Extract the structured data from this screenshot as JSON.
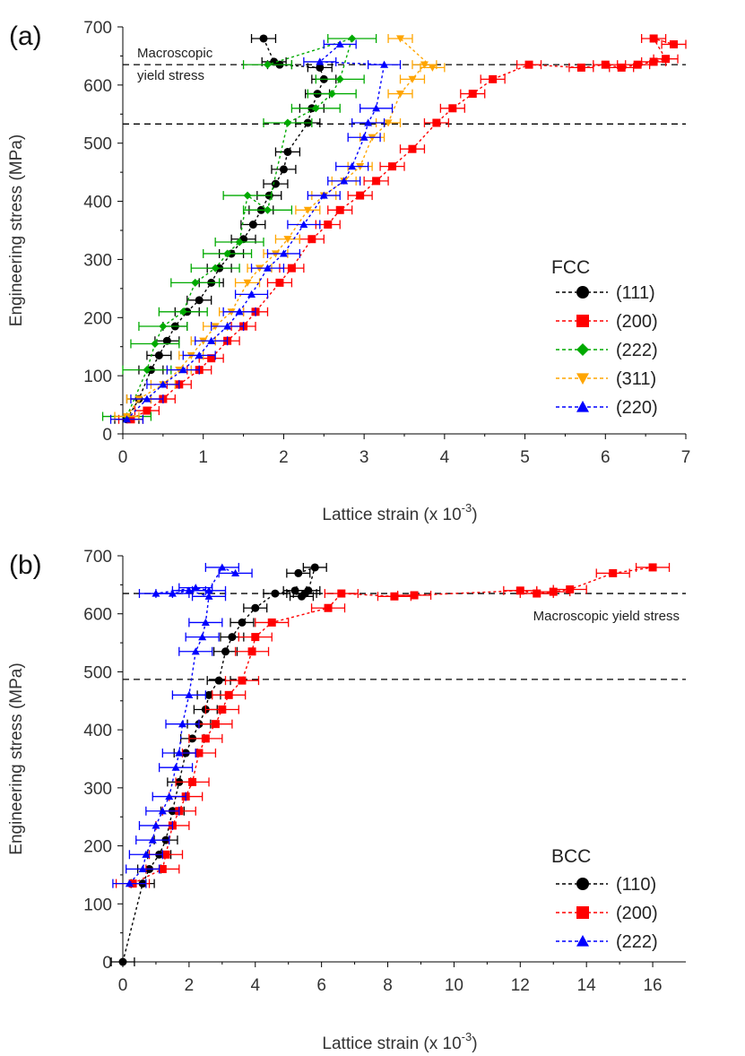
{
  "chart_data": [
    {
      "id": "a",
      "type": "scatter",
      "panel_label": "(a)",
      "xlabel": "Lattice strain (x 10",
      "xlabel_exp": "-3",
      "xlabel_close": ")",
      "ylabel": "Engineering stress (MPa)",
      "xlim": [
        0,
        7
      ],
      "ylim": [
        0,
        700
      ],
      "xticks": [
        0,
        1,
        2,
        3,
        4,
        5,
        6,
        7
      ],
      "yticks": [
        0,
        100,
        200,
        300,
        400,
        500,
        600,
        700
      ],
      "hlines": [
        635,
        533
      ],
      "annotation": [
        "Macroscopic",
        "yield stress"
      ],
      "legend_title": "FCC",
      "series": [
        {
          "name": "(111)",
          "color": "#000000",
          "marker": "circle",
          "x": [
            0.05,
            0.2,
            0.35,
            0.45,
            0.55,
            0.65,
            0.8,
            0.95,
            1.1,
            1.2,
            1.35,
            1.5,
            1.62,
            1.72,
            1.82,
            1.9,
            2.0,
            2.05,
            2.3,
            2.35,
            2.42,
            2.5,
            2.45,
            1.95,
            1.88,
            1.75
          ],
          "y": [
            25,
            60,
            110,
            135,
            160,
            185,
            210,
            230,
            260,
            285,
            310,
            335,
            360,
            385,
            410,
            430,
            455,
            485,
            535,
            560,
            585,
            610,
            630,
            635,
            640,
            680
          ],
          "err": 0.15
        },
        {
          "name": "(200)",
          "color": "#ff0000",
          "marker": "square",
          "x": [
            0.1,
            0.3,
            0.5,
            0.7,
            0.95,
            1.1,
            1.3,
            1.5,
            1.65,
            1.95,
            2.1,
            2.35,
            2.55,
            2.7,
            2.95,
            3.15,
            3.35,
            3.6,
            3.9,
            4.1,
            4.35,
            4.6,
            5.05,
            5.7,
            6.0,
            6.2,
            6.4,
            6.6,
            6.75,
            6.6,
            6.85
          ],
          "y": [
            25,
            40,
            60,
            85,
            110,
            130,
            160,
            185,
            210,
            260,
            285,
            335,
            360,
            385,
            410,
            435,
            460,
            490,
            535,
            560,
            585,
            610,
            635,
            630,
            635,
            630,
            635,
            640,
            645,
            680,
            670
          ],
          "err": 0.15
        },
        {
          "name": "(222)",
          "color": "#00aa00",
          "marker": "diamond",
          "x": [
            0.05,
            0.3,
            0.4,
            0.5,
            0.75,
            0.9,
            1.15,
            1.3,
            1.45,
            1.55,
            1.8,
            2.05,
            2.4,
            2.6,
            2.7,
            2.85,
            1.8
          ],
          "y": [
            30,
            110,
            155,
            185,
            210,
            260,
            285,
            310,
            330,
            410,
            385,
            535,
            560,
            585,
            610,
            680,
            635
          ],
          "err": 0.3
        },
        {
          "name": "(311)",
          "color": "#ffa500",
          "marker": "triangle-down",
          "x": [
            0.05,
            0.2,
            0.5,
            0.7,
            0.85,
            1.0,
            1.15,
            1.35,
            1.55,
            1.7,
            1.9,
            2.05,
            2.3,
            2.5,
            2.75,
            2.95,
            3.1,
            3.3,
            3.45,
            3.6,
            3.75,
            3.85,
            3.45
          ],
          "y": [
            30,
            60,
            85,
            110,
            135,
            160,
            185,
            210,
            260,
            285,
            310,
            335,
            385,
            410,
            435,
            460,
            510,
            535,
            585,
            610,
            635,
            630,
            680
          ],
          "err": 0.15
        },
        {
          "name": "(220)",
          "color": "#0000ff",
          "marker": "triangle-up",
          "x": [
            0.05,
            0.3,
            0.5,
            0.75,
            0.95,
            1.1,
            1.3,
            1.45,
            1.6,
            1.8,
            2.0,
            2.25,
            2.5,
            2.75,
            2.85,
            3.0,
            3.05,
            3.15,
            3.25,
            2.45,
            2.7
          ],
          "y": [
            25,
            60,
            85,
            110,
            135,
            160,
            185,
            210,
            240,
            285,
            310,
            360,
            410,
            435,
            460,
            510,
            535,
            560,
            635,
            640,
            670
          ],
          "err": 0.2
        }
      ]
    },
    {
      "id": "b",
      "type": "scatter",
      "panel_label": "(b)",
      "xlabel": "Lattice strain (x 10",
      "xlabel_exp": "-3",
      "xlabel_close": ")",
      "ylabel": "Engineering stress (MPa)",
      "xlim": [
        0,
        17
      ],
      "ylim": [
        0,
        700
      ],
      "xticks": [
        0,
        2,
        4,
        6,
        8,
        10,
        12,
        14,
        16
      ],
      "yticks": [
        0,
        100,
        200,
        300,
        400,
        500,
        600,
        700
      ],
      "hlines": [
        635,
        487
      ],
      "annotation": [
        "Macroscopic yield stress"
      ],
      "legend_title": "BCC",
      "series": [
        {
          "name": "(110)",
          "color": "#000000",
          "marker": "circle",
          "x": [
            0,
            0.6,
            0.8,
            1.1,
            1.3,
            1.5,
            1.7,
            1.9,
            2.1,
            2.3,
            2.5,
            2.6,
            2.9,
            3.1,
            3.3,
            3.6,
            4.0,
            4.6,
            5.2,
            5.4,
            5.5,
            5.6,
            5.8,
            5.3
          ],
          "y": [
            0,
            135,
            160,
            185,
            210,
            260,
            310,
            360,
            385,
            410,
            435,
            460,
            485,
            535,
            560,
            585,
            610,
            635,
            640,
            630,
            635,
            640,
            680,
            670
          ],
          "err": 0.35
        },
        {
          "name": "(200)",
          "color": "#ff0000",
          "marker": "square",
          "x": [
            0.3,
            1.2,
            1.3,
            1.5,
            1.7,
            1.9,
            2.1,
            2.3,
            2.5,
            2.8,
            3.0,
            3.2,
            3.6,
            3.9,
            4.0,
            4.5,
            6.2,
            6.6,
            8.2,
            8.8,
            12.0,
            12.5,
            13.0,
            13.5,
            14.8,
            16.0
          ],
          "y": [
            135,
            160,
            185,
            235,
            260,
            285,
            310,
            360,
            385,
            410,
            435,
            460,
            485,
            535,
            560,
            585,
            610,
            635,
            630,
            632,
            640,
            635,
            638,
            642,
            670,
            680
          ],
          "err": 0.5
        },
        {
          "name": "(222)",
          "color": "#0000ff",
          "marker": "triangle-up",
          "x": [
            0.2,
            0.6,
            0.7,
            0.9,
            1.0,
            1.2,
            1.4,
            1.6,
            1.7,
            1.8,
            2.0,
            2.2,
            2.4,
            2.5,
            2.6,
            2.0,
            1.5,
            1.0,
            2.2,
            2.6,
            3.0,
            3.4
          ],
          "y": [
            135,
            160,
            185,
            210,
            235,
            260,
            285,
            335,
            360,
            410,
            460,
            535,
            560,
            585,
            630,
            640,
            635,
            635,
            645,
            640,
            680,
            670
          ],
          "err": 0.5
        }
      ]
    }
  ]
}
